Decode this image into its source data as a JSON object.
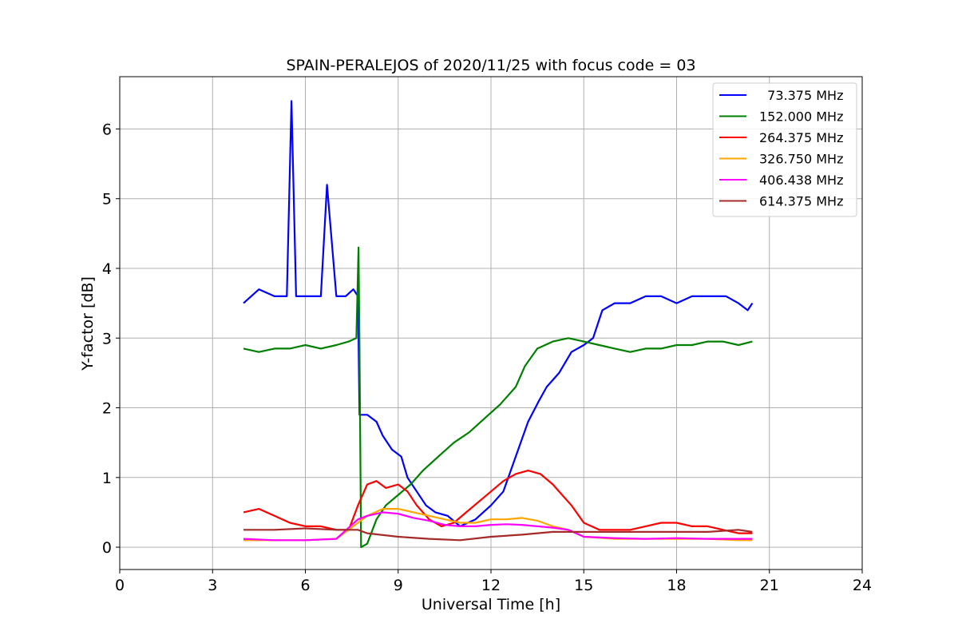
{
  "chart_data": {
    "type": "line",
    "title": "SPAIN-PERALEJOS of 2020/11/25 with focus code = 03",
    "xlabel": "Universal Time [h]",
    "ylabel": "Y-factor [dB]",
    "xlim": [
      0,
      24
    ],
    "ylim": [
      -0.32,
      6.75
    ],
    "xticks": [
      "0",
      "3",
      "6",
      "9",
      "12",
      "15",
      "18",
      "21",
      "24"
    ],
    "yticks": [
      "0",
      "1",
      "2",
      "3",
      "4",
      "5",
      "6"
    ],
    "grid": true,
    "legend_position": "top-right",
    "series": [
      {
        "name": "  73.375 MHz",
        "color": "#0000ff",
        "x": [
          4.0,
          4.5,
          5.0,
          5.4,
          5.55,
          5.7,
          6.0,
          6.5,
          6.7,
          7.0,
          7.3,
          7.55,
          7.7,
          7.75,
          8.0,
          8.3,
          8.5,
          8.8,
          9.1,
          9.3,
          9.6,
          9.9,
          10.2,
          10.6,
          11.0,
          11.5,
          12.0,
          12.4,
          12.8,
          13.2,
          13.55,
          13.8,
          14.2,
          14.6,
          15.0,
          15.3,
          15.6,
          16.0,
          16.5,
          17.0,
          17.5,
          18.0,
          18.5,
          18.8,
          19.2,
          19.6,
          20.0,
          20.3,
          20.45
        ],
        "y": [
          3.5,
          3.7,
          3.6,
          3.6,
          6.4,
          3.6,
          3.6,
          3.6,
          5.2,
          3.6,
          3.6,
          3.7,
          3.6,
          1.9,
          1.9,
          1.8,
          1.6,
          1.4,
          1.3,
          1.0,
          0.8,
          0.6,
          0.5,
          0.45,
          0.3,
          0.4,
          0.6,
          0.8,
          1.3,
          1.8,
          2.1,
          2.3,
          2.5,
          2.8,
          2.9,
          3.0,
          3.4,
          3.5,
          3.5,
          3.6,
          3.6,
          3.5,
          3.6,
          3.6,
          3.6,
          3.6,
          3.5,
          3.4,
          3.5
        ]
      },
      {
        "name": "152.000 MHz",
        "color": "#008000",
        "x": [
          4.0,
          4.5,
          5.0,
          5.5,
          6.0,
          6.5,
          7.0,
          7.4,
          7.65,
          7.72,
          7.75,
          7.8,
          8.0,
          8.3,
          8.6,
          9.0,
          9.4,
          9.8,
          10.3,
          10.8,
          11.3,
          11.8,
          12.3,
          12.8,
          13.1,
          13.5,
          14.0,
          14.5,
          15.0,
          15.5,
          16.0,
          16.5,
          17.0,
          17.5,
          18.0,
          18.5,
          19.0,
          19.5,
          20.0,
          20.45
        ],
        "y": [
          2.85,
          2.8,
          2.85,
          2.85,
          2.9,
          2.85,
          2.9,
          2.95,
          3.0,
          4.3,
          2.9,
          0.0,
          0.05,
          0.4,
          0.6,
          0.75,
          0.9,
          1.1,
          1.3,
          1.5,
          1.65,
          1.85,
          2.05,
          2.3,
          2.6,
          2.85,
          2.95,
          3.0,
          2.95,
          2.9,
          2.85,
          2.8,
          2.85,
          2.85,
          2.9,
          2.9,
          2.95,
          2.95,
          2.9,
          2.95
        ]
      },
      {
        "name": "264.375 MHz",
        "color": "#ff0000",
        "x": [
          4.0,
          4.5,
          5.0,
          5.5,
          6.0,
          6.5,
          7.0,
          7.4,
          7.7,
          8.0,
          8.3,
          8.6,
          9.0,
          9.3,
          9.6,
          10.0,
          10.4,
          10.8,
          11.2,
          11.6,
          12.0,
          12.4,
          12.8,
          13.2,
          13.6,
          14.0,
          14.3,
          14.6,
          15.0,
          15.5,
          16.0,
          16.5,
          17.0,
          17.5,
          18.0,
          18.5,
          19.0,
          19.5,
          20.0,
          20.45
        ],
        "y": [
          0.5,
          0.55,
          0.45,
          0.35,
          0.3,
          0.3,
          0.25,
          0.25,
          0.6,
          0.9,
          0.95,
          0.85,
          0.9,
          0.8,
          0.6,
          0.4,
          0.3,
          0.35,
          0.5,
          0.65,
          0.8,
          0.95,
          1.05,
          1.1,
          1.05,
          0.9,
          0.75,
          0.6,
          0.35,
          0.25,
          0.25,
          0.25,
          0.3,
          0.35,
          0.35,
          0.3,
          0.3,
          0.25,
          0.2,
          0.2
        ]
      },
      {
        "name": "326.750 MHz",
        "color": "#ffa500",
        "x": [
          4.0,
          5.0,
          6.0,
          7.0,
          7.7,
          8.0,
          8.5,
          9.0,
          9.5,
          10.0,
          10.5,
          11.0,
          11.5,
          12.0,
          12.5,
          13.0,
          13.5,
          14.0,
          14.5,
          15.0,
          16.0,
          17.0,
          18.0,
          19.0,
          20.0,
          20.45
        ],
        "y": [
          0.1,
          0.1,
          0.1,
          0.12,
          0.35,
          0.45,
          0.55,
          0.55,
          0.5,
          0.45,
          0.4,
          0.35,
          0.35,
          0.4,
          0.4,
          0.42,
          0.38,
          0.3,
          0.25,
          0.15,
          0.12,
          0.12,
          0.12,
          0.12,
          0.1,
          0.1
        ]
      },
      {
        "name": "406.438 MHz",
        "color": "#ff00ff",
        "x": [
          4.0,
          5.0,
          6.0,
          7.0,
          7.7,
          8.0,
          8.5,
          9.0,
          9.5,
          10.0,
          10.5,
          11.0,
          11.5,
          12.0,
          12.5,
          13.0,
          13.5,
          14.0,
          14.5,
          15.0,
          16.0,
          17.0,
          18.0,
          19.0,
          20.0,
          20.45
        ],
        "y": [
          0.12,
          0.1,
          0.1,
          0.12,
          0.4,
          0.45,
          0.5,
          0.48,
          0.42,
          0.38,
          0.32,
          0.3,
          0.3,
          0.32,
          0.33,
          0.32,
          0.3,
          0.28,
          0.25,
          0.15,
          0.13,
          0.12,
          0.13,
          0.12,
          0.12,
          0.12
        ]
      },
      {
        "name": "614.375 MHz",
        "color": "#a52a2a",
        "x": [
          4.0,
          5.0,
          6.0,
          7.0,
          7.7,
          8.0,
          9.0,
          10.0,
          11.0,
          12.0,
          13.0,
          14.0,
          15.0,
          16.0,
          17.0,
          18.0,
          19.0,
          20.0,
          20.45
        ],
        "y": [
          0.25,
          0.25,
          0.27,
          0.25,
          0.25,
          0.2,
          0.15,
          0.12,
          0.1,
          0.15,
          0.18,
          0.22,
          0.22,
          0.22,
          0.22,
          0.22,
          0.22,
          0.25,
          0.22
        ]
      }
    ]
  }
}
